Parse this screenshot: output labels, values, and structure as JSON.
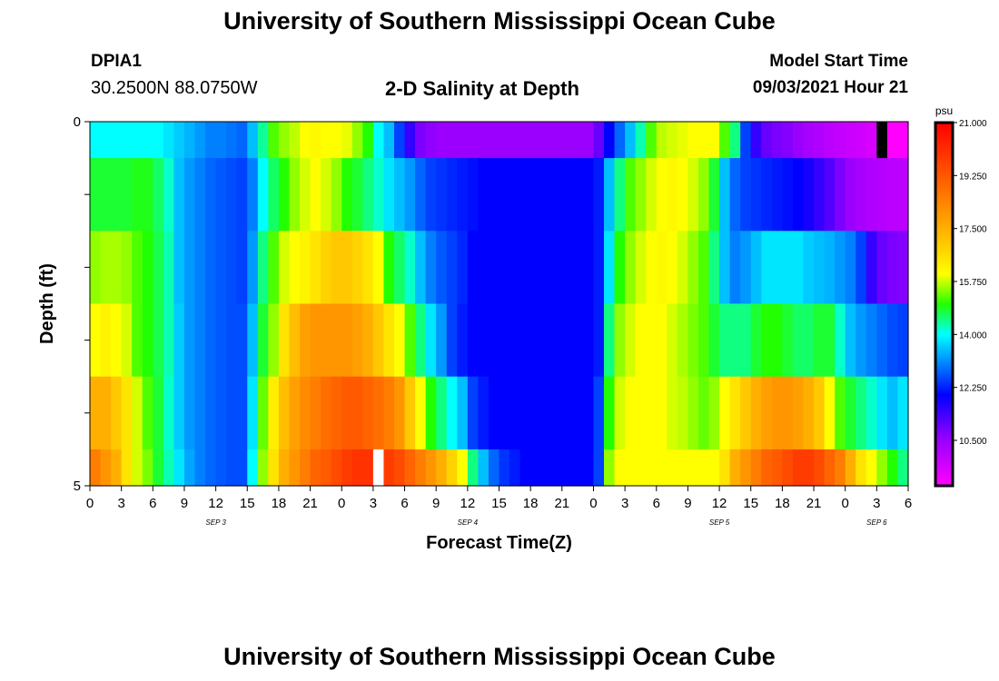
{
  "page": {
    "title": "University of Southern Mississippi Ocean Cube",
    "footer_title": "University of Southern Mississippi Ocean Cube",
    "station_id": "DPIA1",
    "station_coords": "30.2500N  88.0750W",
    "plot_title": "2-D Salinity at Depth",
    "start_label": "Model Start Time",
    "start_value": "09/03/2021 Hour 21"
  },
  "chart_data": {
    "type": "heatmap",
    "title": "2-D Salinity at Depth",
    "xlabel": "Forecast Time(Z)",
    "ylabel": "Depth (ft)",
    "x_unit": "hours from 09/03/2021 00Z",
    "xlim": [
      0,
      78
    ],
    "x_tick_labels": [
      "0",
      "3",
      "6",
      "9",
      "12",
      "15",
      "18",
      "21",
      "0",
      "3",
      "6",
      "9",
      "12",
      "15",
      "18",
      "21",
      "0",
      "3",
      "6",
      "9",
      "12",
      "15",
      "18",
      "21",
      "0",
      "3",
      "6"
    ],
    "day_labels": [
      {
        "hour": 12,
        "label": "SEP 3"
      },
      {
        "hour": 36,
        "label": "SEP 4"
      },
      {
        "hour": 60,
        "label": "SEP 5"
      },
      {
        "hour": 75,
        "label": "SEP 6"
      }
    ],
    "ylim": [
      0,
      5
    ],
    "y_tick_values": [
      0,
      1,
      2,
      3,
      4,
      5
    ],
    "y_tick_labels": [
      "0",
      "",
      "",
      "",
      "",
      "5"
    ],
    "depth_bands": [
      [
        0,
        0.5
      ],
      [
        0.5,
        1.5
      ],
      [
        1.5,
        2.5
      ],
      [
        2.5,
        3.5
      ],
      [
        3.5,
        4.5
      ],
      [
        4.5,
        5
      ]
    ],
    "time_step_hours": 1,
    "values": [
      [
        14.0,
        14.0,
        14.0,
        14.0,
        14.0,
        14.0,
        14.0,
        13.8,
        13.6,
        13.4,
        13.2,
        13.0,
        13.0,
        12.9,
        12.8,
        13.5,
        14.4,
        15.2,
        15.5,
        15.7,
        16.0,
        16.1,
        16.0,
        16.0,
        15.9,
        15.5,
        15.0,
        14.0,
        13.5,
        12.5,
        11.5,
        10.8,
        10.6,
        10.5,
        10.5,
        10.5,
        10.5,
        10.5,
        10.5,
        10.5,
        10.5,
        10.5,
        10.5,
        10.5,
        10.5,
        10.5,
        10.5,
        10.5,
        11.0,
        12.0,
        12.8,
        13.5,
        14.3,
        15.2,
        15.7,
        15.8,
        15.9,
        16.0,
        16.0,
        16.0,
        15.2,
        14.5,
        12.5,
        11.5,
        11.0,
        10.8,
        10.7,
        10.5,
        10.3,
        10.2,
        10.0,
        9.9,
        9.8,
        9.7,
        9.6,
        null,
        9.0,
        9.0
      ],
      [
        14.8,
        14.8,
        14.8,
        14.8,
        14.9,
        14.9,
        14.6,
        14.2,
        13.5,
        13.2,
        13.0,
        12.8,
        12.7,
        12.6,
        12.5,
        13.0,
        14.0,
        14.6,
        15.0,
        15.5,
        15.8,
        16.0,
        15.8,
        15.5,
        15.0,
        14.8,
        14.5,
        14.2,
        13.8,
        13.5,
        13.2,
        12.8,
        12.5,
        12.4,
        12.3,
        12.2,
        12.1,
        12.0,
        12.0,
        12.0,
        12.0,
        12.0,
        12.0,
        12.0,
        12.0,
        12.0,
        12.0,
        12.0,
        12.2,
        13.5,
        14.5,
        15.2,
        15.5,
        15.8,
        16.0,
        16.1,
        16.0,
        15.8,
        15.5,
        14.8,
        13.5,
        12.8,
        12.5,
        12.4,
        12.3,
        12.2,
        12.1,
        12.0,
        11.8,
        11.5,
        11.2,
        10.8,
        10.5,
        10.3,
        10.2,
        10.1,
        10.0,
        10.0
      ],
      [
        15.5,
        15.6,
        15.6,
        15.5,
        15.2,
        15.0,
        14.7,
        14.3,
        13.5,
        13.2,
        13.0,
        12.8,
        12.7,
        12.6,
        12.5,
        13.2,
        14.5,
        15.2,
        15.8,
        16.0,
        16.2,
        16.5,
        16.8,
        17.0,
        17.0,
        16.8,
        16.5,
        16.0,
        15.0,
        14.6,
        14.2,
        13.5,
        13.0,
        12.7,
        12.5,
        12.3,
        12.0,
        12.0,
        12.0,
        12.0,
        12.0,
        12.0,
        12.0,
        12.0,
        12.0,
        12.0,
        12.0,
        12.0,
        12.2,
        13.8,
        15.0,
        15.5,
        15.8,
        16.0,
        16.1,
        16.0,
        15.8,
        15.5,
        15.2,
        14.5,
        13.5,
        13.0,
        13.2,
        13.5,
        13.8,
        13.8,
        13.8,
        13.8,
        13.6,
        13.5,
        13.4,
        13.2,
        13.0,
        12.5,
        11.5,
        11.0,
        10.8,
        10.7
      ],
      [
        16.0,
        16.2,
        16.0,
        15.8,
        15.2,
        15.0,
        14.7,
        14.3,
        13.6,
        13.2,
        13.0,
        12.8,
        12.7,
        12.6,
        12.6,
        13.5,
        14.8,
        15.5,
        16.5,
        17.2,
        17.8,
        18.0,
        18.0,
        18.0,
        18.0,
        17.8,
        17.5,
        17.0,
        16.5,
        16.0,
        15.2,
        14.5,
        13.8,
        13.2,
        12.5,
        12.2,
        12.0,
        12.0,
        12.0,
        12.0,
        12.0,
        12.0,
        12.0,
        12.0,
        12.0,
        12.0,
        12.0,
        12.0,
        12.2,
        14.5,
        15.5,
        15.8,
        16.0,
        16.0,
        16.0,
        15.8,
        15.6,
        15.4,
        15.2,
        14.8,
        14.5,
        14.5,
        14.5,
        14.8,
        15.0,
        15.0,
        14.8,
        14.6,
        14.6,
        14.8,
        14.8,
        14.2,
        13.5,
        13.2,
        13.0,
        12.8,
        12.6,
        12.5
      ],
      [
        17.5,
        17.5,
        17.0,
        16.5,
        15.8,
        15.2,
        14.8,
        14.2,
        13.6,
        13.2,
        13.0,
        12.8,
        12.7,
        12.6,
        12.6,
        13.8,
        15.3,
        16.3,
        17.2,
        17.8,
        18.2,
        18.5,
        18.8,
        19.0,
        19.2,
        19.2,
        19.0,
        18.8,
        18.5,
        18.0,
        17.0,
        16.0,
        15.0,
        14.5,
        14.0,
        13.5,
        12.5,
        12.2,
        12.0,
        12.0,
        12.0,
        12.0,
        12.0,
        12.0,
        12.0,
        12.0,
        12.0,
        12.0,
        12.5,
        15.0,
        15.8,
        16.0,
        16.0,
        16.0,
        16.0,
        15.8,
        15.7,
        15.5,
        15.3,
        15.5,
        16.0,
        16.5,
        17.0,
        17.5,
        17.8,
        18.0,
        18.0,
        17.8,
        17.5,
        17.0,
        16.0,
        15.2,
        14.8,
        14.5,
        14.2,
        13.8,
        13.5,
        13.8
      ],
      [
        18.5,
        18.0,
        17.5,
        16.5,
        15.8,
        15.4,
        14.8,
        14.3,
        13.8,
        13.3,
        13.0,
        12.8,
        12.7,
        12.6,
        12.6,
        14.0,
        15.5,
        16.5,
        17.5,
        18.0,
        18.5,
        19.0,
        19.2,
        19.5,
        19.8,
        20.0,
        20.0,
        null,
        19.8,
        19.5,
        19.0,
        18.5,
        18.0,
        17.5,
        16.8,
        16.0,
        14.5,
        13.5,
        12.8,
        12.4,
        12.2,
        12.0,
        12.0,
        12.0,
        12.0,
        12.0,
        12.0,
        12.0,
        12.5,
        15.5,
        16.0,
        16.0,
        16.0,
        16.0,
        16.0,
        16.0,
        16.0,
        16.0,
        16.0,
        16.0,
        16.5,
        17.5,
        18.0,
        18.5,
        19.0,
        19.2,
        19.5,
        19.8,
        19.8,
        19.5,
        19.0,
        18.5,
        17.5,
        16.5,
        16.0,
        15.5,
        15.0,
        14.5
      ]
    ],
    "missing_cells": [
      {
        "depth_band": 0,
        "hour": 75,
        "color": "#000000"
      },
      {
        "depth_band": 5,
        "hour": 27,
        "color": "#ffffff"
      }
    ],
    "colorbar": {
      "unit": "psu",
      "range": [
        9.0,
        21.0
      ],
      "tick_labels": [
        "21.000",
        "19.250",
        "17.500",
        "15.750",
        "14.000",
        "12.250",
        "10.500"
      ],
      "tick_values": [
        21.0,
        19.25,
        17.5,
        15.75,
        14.0,
        12.25,
        10.5
      ],
      "stops": [
        {
          "value": 9.0,
          "color": "#ff00ff"
        },
        {
          "value": 10.5,
          "color": "#9b00ff"
        },
        {
          "value": 12.0,
          "color": "#0000ff"
        },
        {
          "value": 14.0,
          "color": "#00ffff"
        },
        {
          "value": 15.0,
          "color": "#22ff00"
        },
        {
          "value": 16.0,
          "color": "#ffff00"
        },
        {
          "value": 17.0,
          "color": "#ffc800"
        },
        {
          "value": 19.0,
          "color": "#ff6400"
        },
        {
          "value": 21.0,
          "color": "#ff0000"
        }
      ]
    },
    "grid": false
  }
}
